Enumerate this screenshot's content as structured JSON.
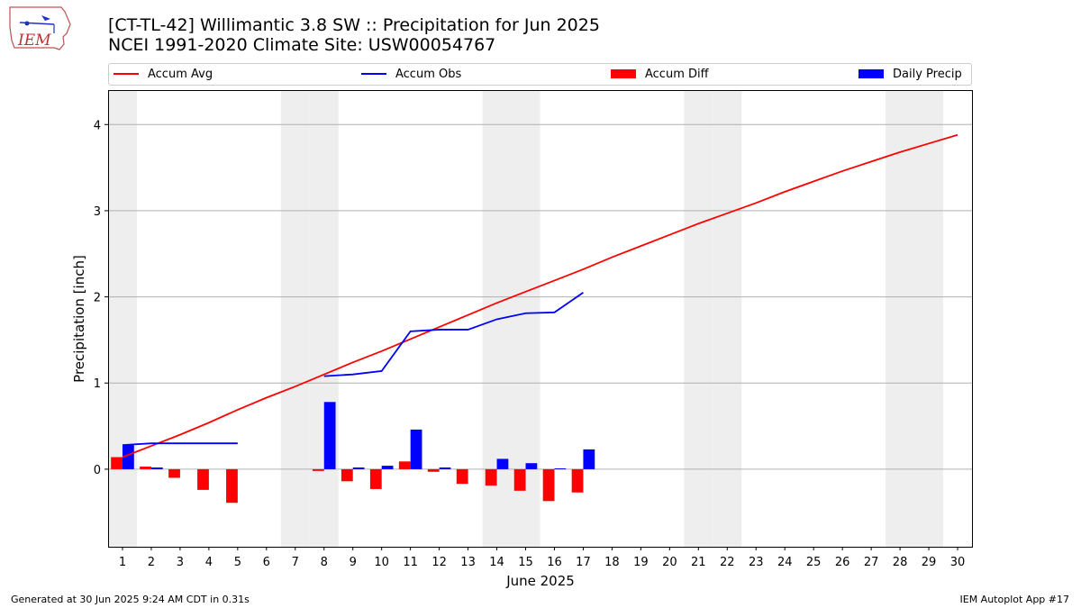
{
  "header": {
    "title_line1": "[CT-TL-42] Willimantic 3.8 SW :: Precipitation for Jun 2025",
    "title_line2": "NCEI 1991-2020 Climate Site: USW00054767",
    "logo_text": "IEM"
  },
  "footer": {
    "generated": "Generated at 30 Jun 2025 9:24 AM CDT in 0.31s",
    "app": "IEM Autoplot App #17"
  },
  "colors": {
    "avg": "#ff0000",
    "obs": "#0000ff",
    "diff": "#ff0000",
    "daily": "#0000ff",
    "weekend_shade": "#eeeeee",
    "grid": "#b0b0b0"
  },
  "legend": {
    "items": [
      {
        "label": "Accum Avg",
        "kind": "line",
        "color": "#ff0000"
      },
      {
        "label": "Accum Obs",
        "kind": "line",
        "color": "#0000ff"
      },
      {
        "label": "Accum Diff",
        "kind": "box",
        "color": "#ff0000"
      },
      {
        "label": "Daily Precip",
        "kind": "box",
        "color": "#0000ff"
      }
    ]
  },
  "chart_data": {
    "type": "bar",
    "xlabel": "June 2025",
    "ylabel": "Precipitation [inch]",
    "xlim": [
      0.5,
      30.5
    ],
    "ylim": [
      -0.9,
      4.4
    ],
    "yticks": [
      0,
      1,
      2,
      3,
      4
    ],
    "grid": true,
    "legend_position": "top",
    "x": [
      1,
      2,
      3,
      4,
      5,
      6,
      7,
      8,
      9,
      10,
      11,
      12,
      13,
      14,
      15,
      16,
      17,
      18,
      19,
      20,
      21,
      22,
      23,
      24,
      25,
      26,
      27,
      28,
      29,
      30
    ],
    "weekend_days": [
      1,
      7,
      8,
      14,
      15,
      21,
      22,
      28,
      29
    ],
    "series": [
      {
        "name": "Accum Avg",
        "kind": "line",
        "color": "#ff0000",
        "x": [
          1,
          2,
          3,
          4,
          5,
          6,
          7,
          8,
          9,
          10,
          11,
          12,
          13,
          14,
          15,
          16,
          17,
          18,
          19,
          20,
          21,
          22,
          23,
          24,
          25,
          26,
          27,
          28,
          29,
          30
        ],
        "values": [
          0.14,
          0.27,
          0.4,
          0.54,
          0.69,
          0.83,
          0.96,
          1.1,
          1.24,
          1.37,
          1.51,
          1.65,
          1.79,
          1.93,
          2.06,
          2.19,
          2.32,
          2.46,
          2.59,
          2.72,
          2.85,
          2.97,
          3.09,
          3.22,
          3.34,
          3.46,
          3.57,
          3.68,
          3.78,
          3.88
        ]
      },
      {
        "name": "Accum Obs",
        "kind": "line",
        "color": "#0000ff",
        "x": [
          1,
          2,
          3,
          4,
          5,
          8,
          9,
          10,
          11,
          12,
          13,
          14,
          15,
          16,
          17
        ],
        "values": [
          0.28,
          0.3,
          0.3,
          0.3,
          0.3,
          1.08,
          1.1,
          1.14,
          1.6,
          1.62,
          1.62,
          1.74,
          1.81,
          1.82,
          2.05
        ],
        "breaks_after": [
          5
        ]
      },
      {
        "name": "Accum Diff",
        "kind": "bar",
        "color": "#ff0000",
        "x": [
          1,
          2,
          3,
          4,
          5,
          8,
          9,
          10,
          11,
          12,
          13,
          14,
          15,
          16,
          17
        ],
        "values": [
          0.14,
          0.03,
          -0.1,
          -0.24,
          -0.39,
          -0.02,
          -0.14,
          -0.23,
          0.09,
          -0.03,
          -0.17,
          -0.19,
          -0.25,
          -0.37,
          -0.27
        ]
      },
      {
        "name": "Daily Precip",
        "kind": "bar",
        "color": "#0000ff",
        "x": [
          1,
          2,
          3,
          4,
          5,
          8,
          9,
          10,
          11,
          12,
          13,
          14,
          15,
          16,
          17
        ],
        "values": [
          0.28,
          0.02,
          0,
          0,
          0,
          0.78,
          0.02,
          0.04,
          0.46,
          0.02,
          0,
          0.12,
          0.07,
          0.01,
          0.23
        ]
      }
    ]
  }
}
